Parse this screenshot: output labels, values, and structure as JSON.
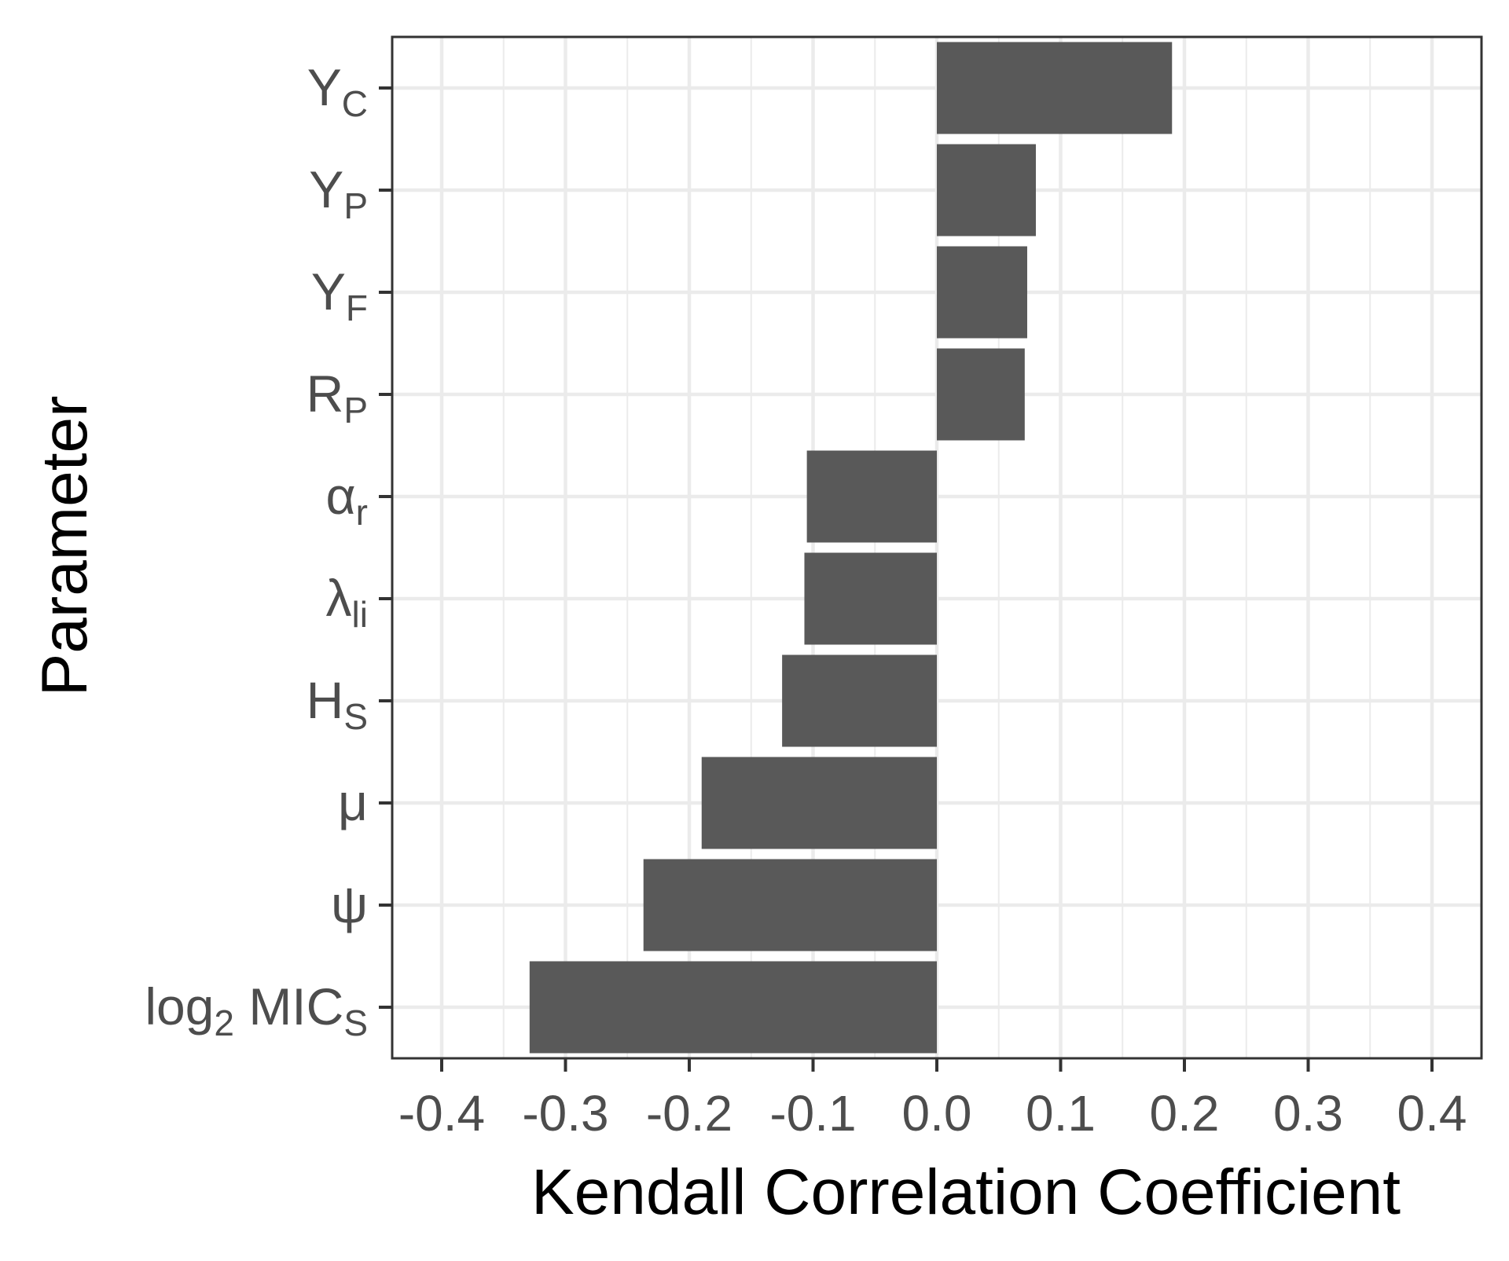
{
  "chart_data": {
    "type": "bar",
    "orientation": "horizontal",
    "xlabel": "Kendall Correlation Coefficient",
    "ylabel": "Parameter",
    "xlim": [
      -0.44,
      0.44
    ],
    "x_ticks": [
      -0.4,
      -0.3,
      -0.2,
      -0.1,
      0.0,
      0.1,
      0.2,
      0.3,
      0.4
    ],
    "x_tick_labels": [
      "-0.4",
      "-0.3",
      "-0.2",
      "-0.1",
      "0.0",
      "0.1",
      "0.2",
      "0.3",
      "0.4"
    ],
    "grid": true,
    "categories": [
      {
        "base": "Y",
        "sub": "C"
      },
      {
        "base": "Y",
        "sub": "P"
      },
      {
        "base": "Y",
        "sub": "F"
      },
      {
        "base": "R",
        "sub": "P"
      },
      {
        "base": "α",
        "sub": "r"
      },
      {
        "base": "λ",
        "sub": "li"
      },
      {
        "base": "H",
        "sub": "S"
      },
      {
        "base": "μ",
        "sub": ""
      },
      {
        "base": "ψ",
        "sub": ""
      },
      {
        "base": "log",
        "sub": "2",
        "tail": " MIC",
        "sub2": "S"
      }
    ],
    "values": [
      0.19,
      0.08,
      0.073,
      0.071,
      -0.105,
      -0.107,
      -0.125,
      -0.19,
      -0.237,
      -0.329
    ],
    "bar_color": "#595959"
  }
}
